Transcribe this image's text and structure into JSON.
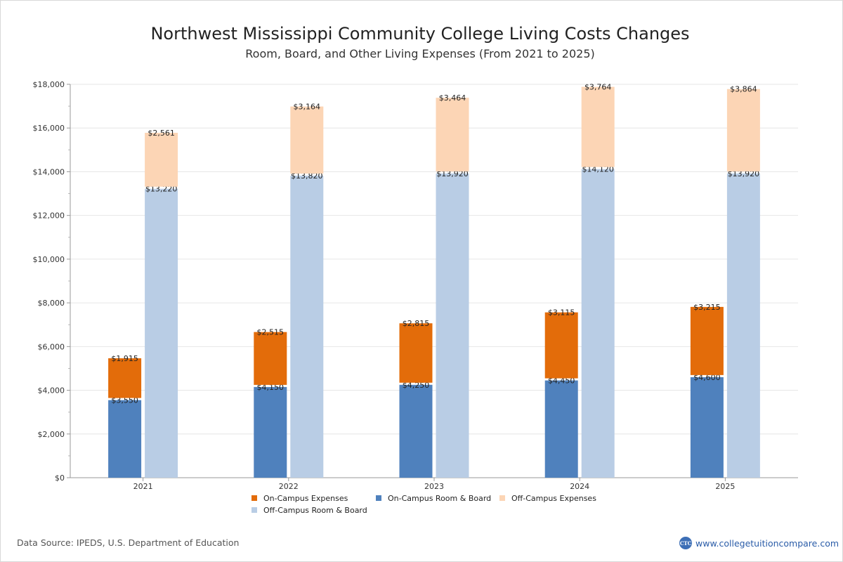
{
  "chart_data": {
    "type": "bar",
    "stacked": true,
    "title": "Northwest Mississippi Community College Living Costs Changes",
    "subtitle": "Room, Board, and Other Living Expenses (From 2021 to 2025)",
    "categories": [
      "2021",
      "2022",
      "2023",
      "2024",
      "2025"
    ],
    "ylim": [
      0,
      18000
    ],
    "yticks": [
      0,
      2000,
      4000,
      6000,
      8000,
      10000,
      12000,
      14000,
      16000,
      18000
    ],
    "ytick_labels": [
      "$0",
      "$2,000",
      "$4,000",
      "$6,000",
      "$8,000",
      "$10,000",
      "$12,000",
      "$14,000",
      "$16,000",
      "$18,000"
    ],
    "grid": true,
    "legend_position": "bottom",
    "stacks": [
      {
        "name": "on-campus",
        "series": [
          {
            "name": "On-Campus Room & Board",
            "color": "#4f81bd",
            "values": [
              3550,
              4150,
              4250,
              4450,
              4600
            ],
            "labels": [
              "$3,550",
              "$4,150",
              "$4,250",
              "$4,450",
              "$4,600"
            ]
          },
          {
            "name": "On-Campus Expenses",
            "color": "#e36c0a",
            "values": [
              1915,
              2515,
              2815,
              3115,
              3215
            ],
            "labels": [
              "$1,915",
              "$2,515",
              "$2,815",
              "$3,115",
              "$3,215"
            ]
          }
        ]
      },
      {
        "name": "off-campus",
        "series": [
          {
            "name": "Off-Campus Room & Board",
            "color": "#b9cde5",
            "values": [
              13220,
              13820,
              13920,
              14120,
              13920
            ],
            "labels": [
              "$13,220",
              "$13,820",
              "$13,920",
              "$14,120",
              "$13,920"
            ]
          },
          {
            "name": "Off-Campus Expenses",
            "color": "#fcd5b5",
            "values": [
              2561,
              3164,
              3464,
              3764,
              3864
            ],
            "labels": [
              "$2,561",
              "$3,164",
              "$3,464",
              "$3,764",
              "$3,864"
            ]
          }
        ]
      }
    ],
    "legend": [
      {
        "label": "On-Campus Expenses",
        "color": "#e36c0a"
      },
      {
        "label": "On-Campus Room & Board",
        "color": "#4f81bd"
      },
      {
        "label": "Off-Campus Expenses",
        "color": "#fcd5b5"
      },
      {
        "label": "Off-Campus Room & Board",
        "color": "#b9cde5"
      }
    ]
  },
  "footer": {
    "source": "Data Source: IPEDS, U.S. Department of Education",
    "brand_logo": "CTC",
    "brand_url": "www.collegetuitioncompare.com"
  }
}
